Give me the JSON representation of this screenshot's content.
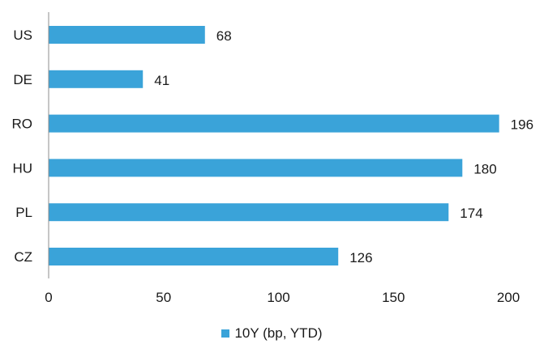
{
  "chart_data": {
    "type": "bar",
    "orientation": "horizontal",
    "categories": [
      "US",
      "DE",
      "RO",
      "HU",
      "PL",
      "CZ"
    ],
    "series": [
      {
        "name": "10Y (bp, YTD)",
        "values": [
          68,
          41,
          196,
          180,
          174,
          126
        ],
        "color": "#3aa3d9"
      }
    ],
    "xlim": [
      0,
      200
    ],
    "xticks": [
      0,
      50,
      100,
      150,
      200
    ],
    "data_labels": true,
    "grid": false,
    "legend_position": "bottom-center"
  }
}
